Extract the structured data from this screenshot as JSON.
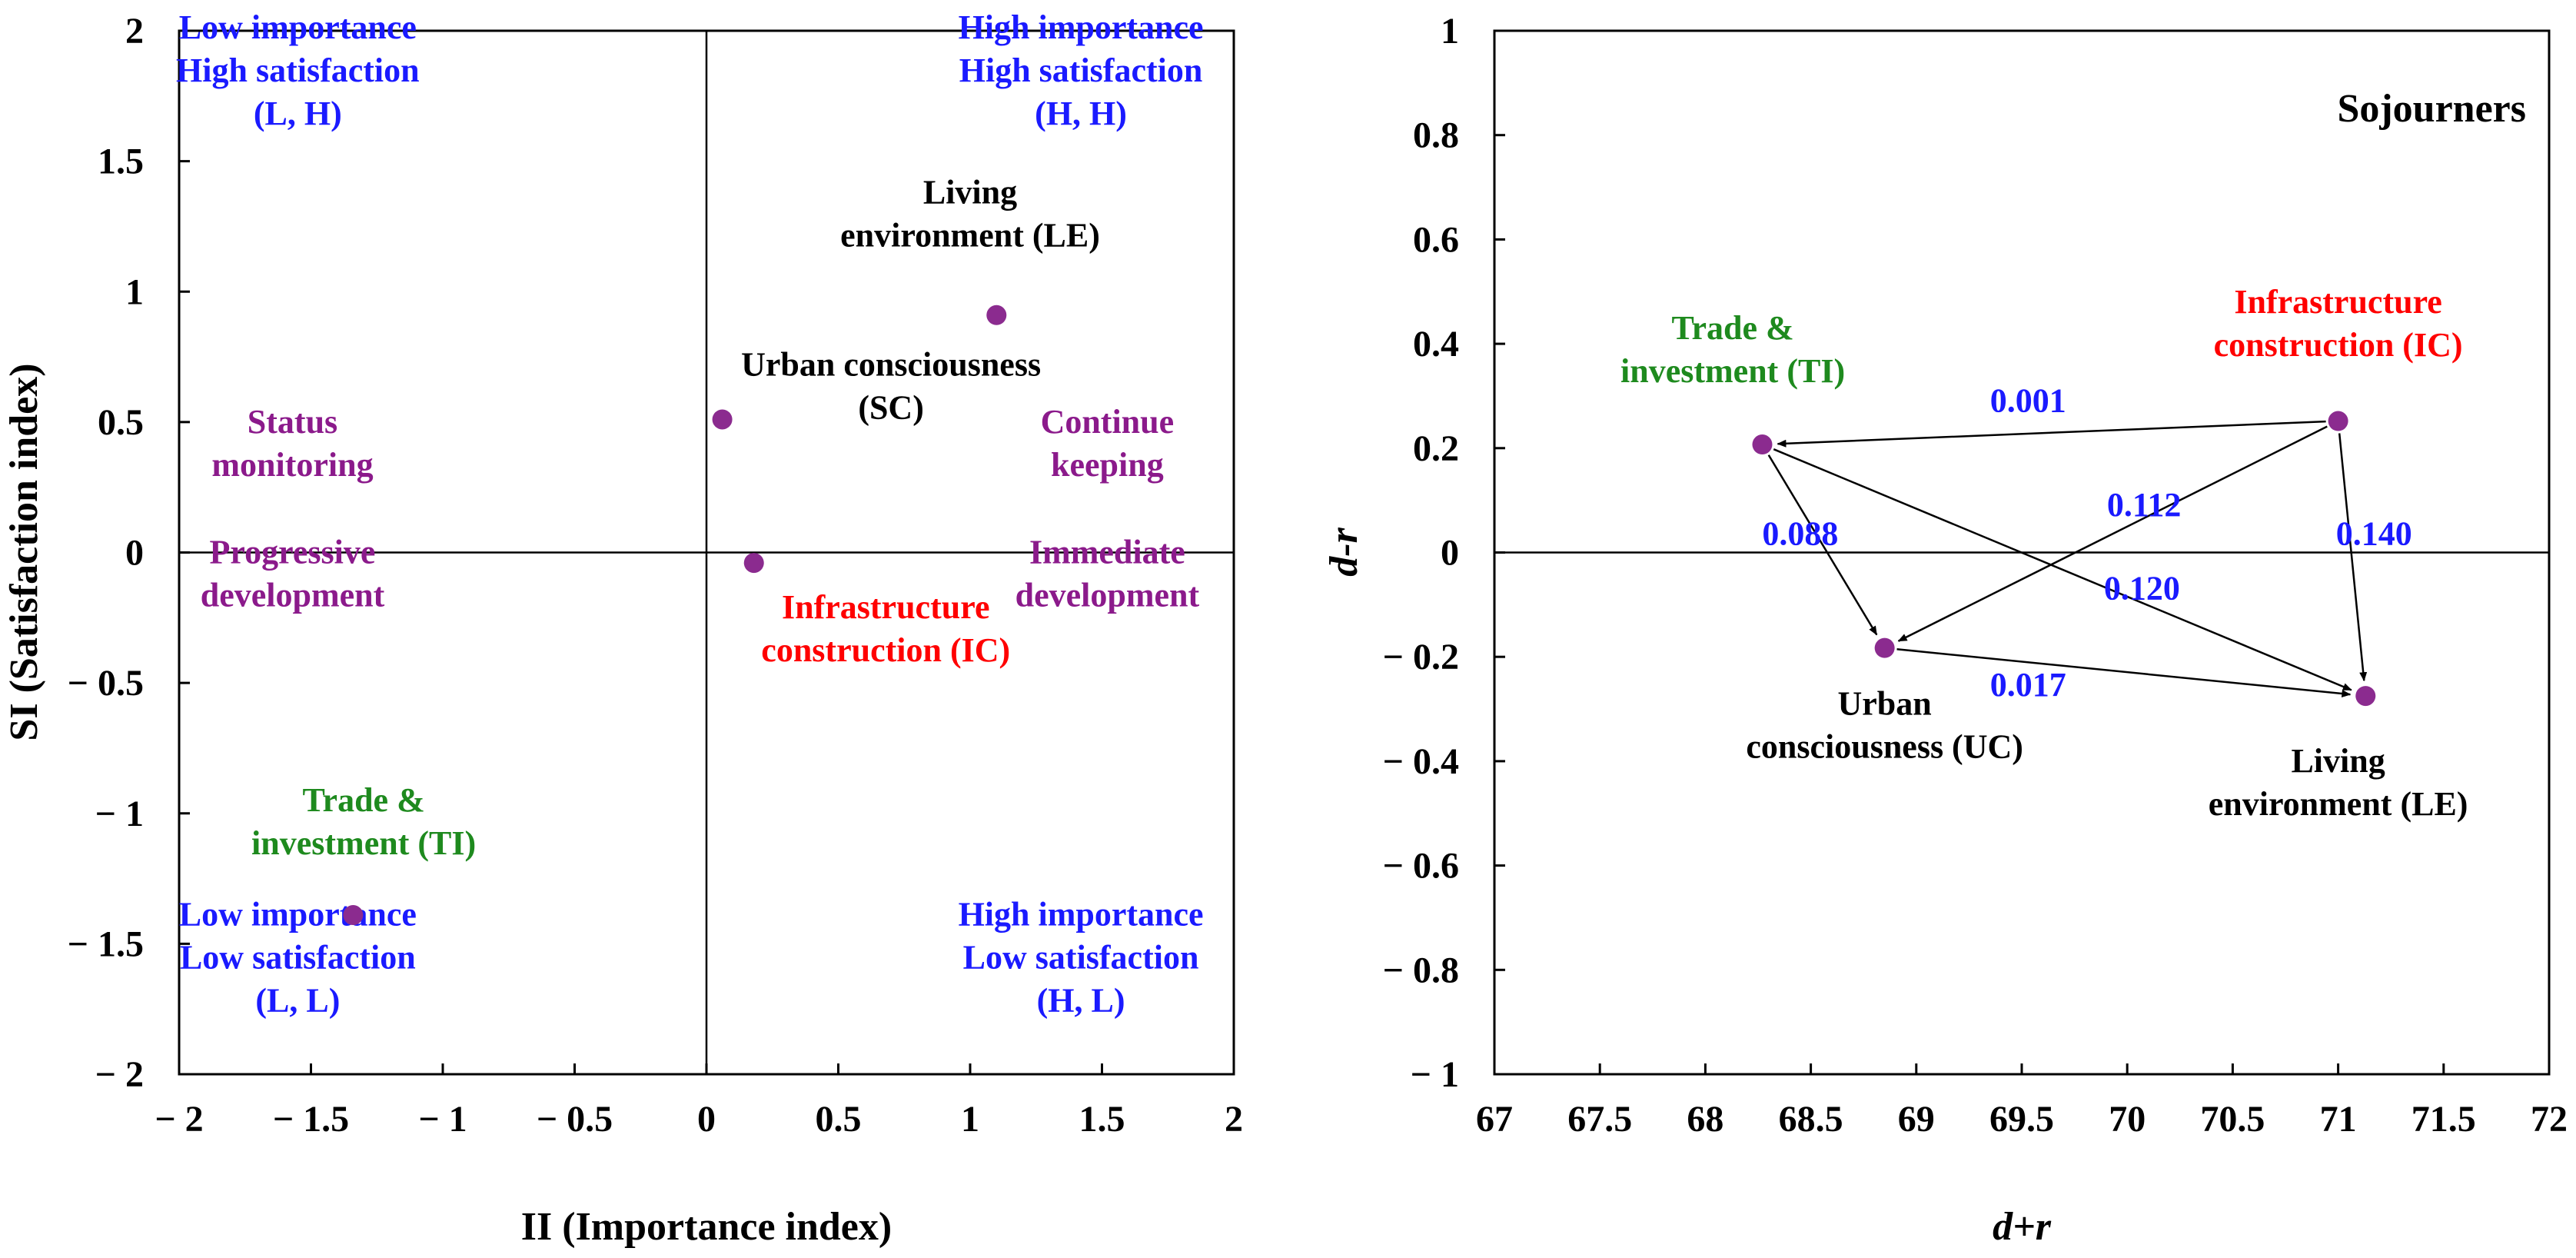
{
  "colors": {
    "point": "#8b2b8f",
    "quadrant_label": "#1a1aff",
    "strategy_label": "#8b1a8b",
    "black": "#000000",
    "red": "#ff0000",
    "green": "#1e8a1e",
    "blue_value": "#1a1aff"
  },
  "chart_data": [
    {
      "type": "scatter",
      "title": "",
      "xlabel": "II (Importance index)",
      "ylabel": "SI (Satisfaction index)",
      "xlim": [
        -2,
        2
      ],
      "ylim": [
        -2,
        2
      ],
      "xticks": [
        -2,
        -1.5,
        -1,
        -0.5,
        0,
        0.5,
        1,
        1.5,
        2
      ],
      "yticks": [
        -2,
        -1.5,
        -1,
        -0.5,
        0,
        0.5,
        1,
        1.5,
        2
      ],
      "xtick_labels": [
        "− 2",
        "− 1.5",
        "− 1",
        "− 0.5",
        "0",
        "0.5",
        "1",
        "1.5",
        "2"
      ],
      "ytick_labels": [
        "− 2",
        "− 1.5",
        "− 1",
        "− 0.5",
        "0",
        "0.5",
        "1",
        "1.5",
        "2"
      ],
      "reference_lines": {
        "x": 0,
        "y": 0
      },
      "points": [
        {
          "name": "Living environment (LE)",
          "x": 1.1,
          "y": 0.91
        },
        {
          "name": "Urban consciousness (SC)",
          "x": 0.06,
          "y": 0.51
        },
        {
          "name": "Infrastructure construction (IC)",
          "x": 0.18,
          "y": -0.04
        },
        {
          "name": "Trade & investment (TI)",
          "x": -1.34,
          "y": -1.39
        }
      ],
      "annotations": [
        {
          "lines": [
            "Low importance",
            "High satisfaction",
            "(L, H)"
          ],
          "x": -1.55,
          "y": 1.85,
          "color": "quadrant_label"
        },
        {
          "lines": [
            "High importance",
            "High satisfaction",
            "(H, H)"
          ],
          "x": 1.42,
          "y": 1.85,
          "color": "quadrant_label"
        },
        {
          "lines": [
            "Low importance",
            "Low satisfaction",
            "(L, L)"
          ],
          "x": -1.55,
          "y": -1.55,
          "color": "quadrant_label"
        },
        {
          "lines": [
            "High importance",
            "Low satisfaction",
            "(H, L)"
          ],
          "x": 1.42,
          "y": -1.55,
          "color": "quadrant_label"
        },
        {
          "lines": [
            "Status",
            "monitoring"
          ],
          "x": -1.57,
          "y": 0.42,
          "color": "strategy_label"
        },
        {
          "lines": [
            "Continue",
            "keeping"
          ],
          "x": 1.52,
          "y": 0.42,
          "color": "strategy_label"
        },
        {
          "lines": [
            "Progressive",
            "development"
          ],
          "x": -1.57,
          "y": -0.08,
          "color": "strategy_label"
        },
        {
          "lines": [
            "Immediate",
            "development"
          ],
          "x": 1.52,
          "y": -0.08,
          "color": "strategy_label"
        },
        {
          "lines": [
            "Living",
            "environment (LE)"
          ],
          "x": 1.0,
          "y": 1.3,
          "color": "black"
        },
        {
          "lines": [
            "Urban consciousness",
            "(SC)"
          ],
          "x": 0.7,
          "y": 0.64,
          "color": "black"
        },
        {
          "lines": [
            "Infrastructure",
            "construction (IC)"
          ],
          "x": 0.68,
          "y": -0.29,
          "color": "red"
        },
        {
          "lines": [
            "Trade &",
            "investment (TI)"
          ],
          "x": -1.3,
          "y": -1.03,
          "color": "green"
        }
      ]
    },
    {
      "type": "scatter",
      "title": "Sojourners",
      "xlabel": "d+r",
      "ylabel": "d-r",
      "xlim": [
        67,
        72
      ],
      "ylim": [
        -1,
        1
      ],
      "xticks": [
        67,
        67.5,
        68,
        68.5,
        69,
        69.5,
        70,
        70.5,
        71,
        71.5,
        72
      ],
      "yticks": [
        -1,
        -0.8,
        -0.6,
        -0.4,
        -0.2,
        0,
        0.2,
        0.4,
        0.6,
        0.8,
        1
      ],
      "xtick_labels": [
        "67",
        "67.5",
        "68",
        "68.5",
        "69",
        "69.5",
        "70",
        "70.5",
        "71",
        "71.5",
        "72"
      ],
      "ytick_labels": [
        "− 1",
        "− 0.8",
        "− 0.6",
        "− 0.4",
        "− 0.2",
        "0",
        "0.2",
        "0.4",
        "0.6",
        "0.8",
        "1"
      ],
      "reference_lines": {
        "y": 0
      },
      "points": [
        {
          "name": "Trade & investment (TI)",
          "x": 68.27,
          "y": 0.207
        },
        {
          "name": "Infrastructure construction (IC)",
          "x": 71.0,
          "y": 0.252
        },
        {
          "name": "Urban consciousness (UC)",
          "x": 68.85,
          "y": -0.183
        },
        {
          "name": "Living environment (LE)",
          "x": 71.13,
          "y": -0.275
        }
      ],
      "edges": [
        {
          "from": 1,
          "to": 0,
          "weight": "0.001",
          "label_x": 69.53,
          "label_y": 0.27
        },
        {
          "from": 1,
          "to": 2,
          "weight": "0.112",
          "label_x": 70.08,
          "label_y": 0.07
        },
        {
          "from": 1,
          "to": 3,
          "weight": "0.140",
          "label_x": 71.17,
          "label_y": 0.015
        },
        {
          "from": 0,
          "to": 2,
          "weight": "0.088",
          "label_x": 68.45,
          "label_y": 0.015
        },
        {
          "from": 0,
          "to": 3,
          "weight": "0.120",
          "label_x": 70.07,
          "label_y": -0.09
        },
        {
          "from": 2,
          "to": 3,
          "weight": "0.017",
          "label_x": 69.53,
          "label_y": -0.275
        }
      ],
      "annotations": [
        {
          "lines": [
            "Trade &",
            "investment (TI)"
          ],
          "x": 68.13,
          "y": 0.39,
          "color": "green"
        },
        {
          "lines": [
            "Infrastructure",
            "construction (IC)"
          ],
          "x": 71.0,
          "y": 0.44,
          "color": "red"
        },
        {
          "lines": [
            "Urban",
            "consciousness (UC)"
          ],
          "x": 68.85,
          "y": -0.33,
          "color": "black"
        },
        {
          "lines": [
            "Living",
            "environment (LE)"
          ],
          "x": 71.0,
          "y": -0.44,
          "color": "black"
        }
      ]
    }
  ]
}
